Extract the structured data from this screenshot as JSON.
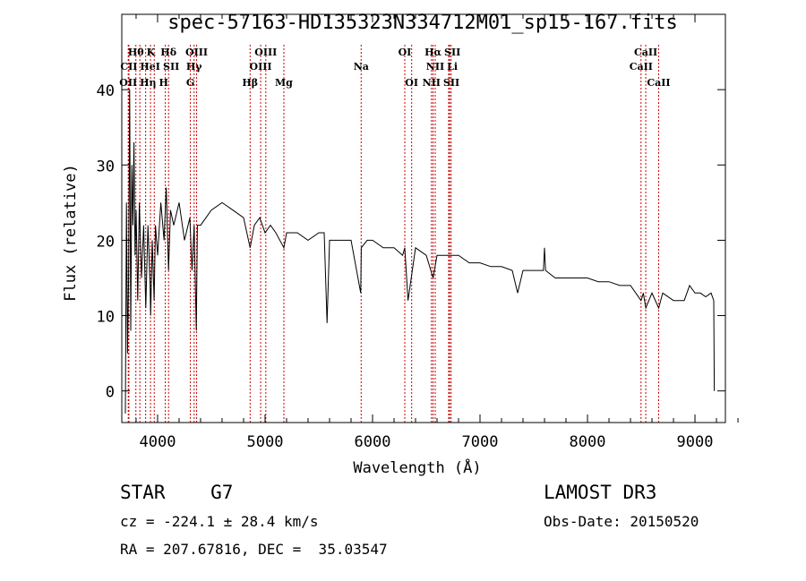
{
  "chart_data": {
    "type": "line",
    "title": "spec-57163-HD135323N334712M01_sp15-167.fits",
    "xlabel": "Wavelength (Å)",
    "ylabel": "Flux (relative)",
    "xlim": [
      3667,
      9283
    ],
    "ylim": [
      -4.2,
      50
    ],
    "xticks": [
      4000,
      5000,
      6000,
      7000,
      8000,
      9000
    ],
    "yticks": [
      0,
      10,
      20,
      30,
      40
    ],
    "series": [
      {
        "name": "spectrum",
        "x": [
          3700,
          3710,
          3720,
          3730,
          3740,
          3750,
          3760,
          3770,
          3780,
          3790,
          3800,
          3815,
          3830,
          3850,
          3870,
          3890,
          3910,
          3930,
          3935,
          3950,
          3968,
          3980,
          4000,
          4030,
          4060,
          4080,
          4102,
          4120,
          4150,
          4200,
          4250,
          4300,
          4320,
          4340,
          4360,
          4370,
          4400,
          4450,
          4500,
          4600,
          4700,
          4800,
          4861,
          4900,
          4950,
          5000,
          5050,
          5100,
          5175,
          5200,
          5300,
          5400,
          5500,
          5550,
          5577,
          5600,
          5700,
          5800,
          5890,
          5895,
          5950,
          6000,
          6100,
          6200,
          6280,
          6300,
          6330,
          6400,
          6500,
          6563,
          6600,
          6700,
          6800,
          6900,
          7000,
          7100,
          7200,
          7300,
          7350,
          7400,
          7500,
          7590,
          7600,
          7610,
          7700,
          7800,
          7900,
          8000,
          8100,
          8200,
          8300,
          8400,
          8498,
          8520,
          8542,
          8600,
          8662,
          8700,
          8800,
          8900,
          8950,
          9000,
          9050,
          9100,
          9150,
          9175,
          9180
        ],
        "y": [
          -3,
          25,
          5,
          15,
          40,
          8,
          30,
          22,
          33,
          18,
          24,
          12,
          25,
          15,
          22,
          11,
          22,
          14,
          10,
          20,
          12,
          22,
          18,
          25,
          20,
          27,
          16,
          24,
          22,
          25,
          20,
          23,
          16,
          22,
          8,
          22,
          22,
          23,
          24,
          25,
          24,
          23,
          19,
          22,
          23,
          21,
          22,
          21,
          19,
          21,
          21,
          20,
          21,
          21,
          9,
          20,
          20,
          20,
          13,
          19,
          20,
          20,
          19,
          19,
          18,
          19,
          12,
          19,
          18,
          15,
          18,
          18,
          18,
          17,
          17,
          16.5,
          16.5,
          16,
          13,
          16,
          16,
          16,
          19,
          16,
          15,
          15,
          15,
          15,
          14.5,
          14.5,
          14,
          14,
          12,
          13,
          11,
          13,
          11,
          13,
          12,
          12,
          14,
          13,
          13,
          12.5,
          13,
          12,
          0
        ]
      }
    ],
    "lines": [
      {
        "label": "OII",
        "wl": 3727,
        "row": 2
      },
      {
        "label": "CII",
        "wl": 3733,
        "row": 1
      },
      {
        "label": "Hθ",
        "wl": 3798,
        "row": 0
      },
      {
        "label": "Hη",
        "wl": 3835,
        "row": 2
      },
      {
        "label": "HeI",
        "wl": 3889,
        "row": 1
      },
      {
        "label": "K",
        "wl": 3934,
        "row": 0
      },
      {
        "label": "H",
        "wl": 3969,
        "row": 2
      },
      {
        "label": "SII",
        "wl": 4072,
        "row": 1
      },
      {
        "label": "Hδ",
        "wl": 4102,
        "row": 0
      },
      {
        "label": "G",
        "wl": 4305,
        "row": 2
      },
      {
        "label": "Hγ",
        "wl": 4340,
        "row": 1
      },
      {
        "label": "OIII",
        "wl": 4363,
        "row": 0
      },
      {
        "label": "Hβ",
        "wl": 4861,
        "row": 2
      },
      {
        "label": "OIII",
        "wl": 4959,
        "row": 1
      },
      {
        "label": "OIII",
        "wl": 5007,
        "row": 0
      },
      {
        "label": "Mg",
        "wl": 5175,
        "row": 2
      },
      {
        "label": "Na",
        "wl": 5894,
        "row": 1
      },
      {
        "label": "OI",
        "wl": 6300,
        "row": 0
      },
      {
        "label": "OI",
        "wl": 6364,
        "row": 2
      },
      {
        "label": "NII",
        "wl": 6548,
        "row": 2
      },
      {
        "label": "Hα",
        "wl": 6563,
        "row": 0
      },
      {
        "label": "NII",
        "wl": 6583,
        "row": 1
      },
      {
        "label": "Li",
        "wl": 6708,
        "row": 1
      },
      {
        "label": "SII",
        "wl": 6717,
        "row": 0
      },
      {
        "label": "SII",
        "wl": 6731,
        "row": 2
      },
      {
        "label": "CaII",
        "wl": 8498,
        "row": 1
      },
      {
        "label": "CaII",
        "wl": 8542,
        "row": 0
      },
      {
        "label": "CaII",
        "wl": 8662,
        "row": 2
      }
    ]
  },
  "info": {
    "class": "STAR",
    "subclass": "G7",
    "survey": "LAMOST DR3",
    "cz": "cz = -224.1 ± 28.4 km/s",
    "obs_date": "Obs-Date: 20150520",
    "radec": "RA = 207.67816, DEC =  35.03547"
  },
  "colors": {
    "line_marker": "#cc0000",
    "spectrum": "#000000"
  }
}
